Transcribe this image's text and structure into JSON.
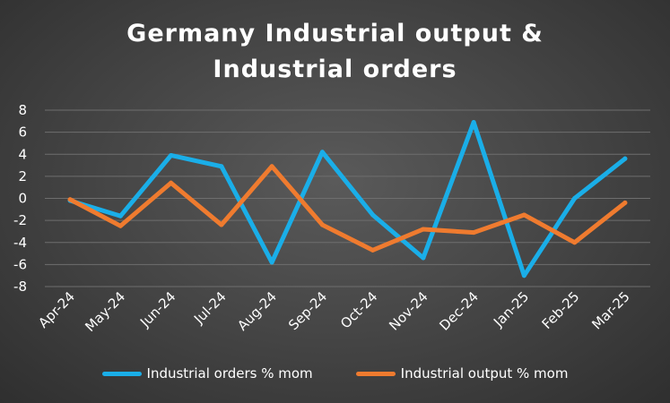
{
  "title_line1": "Germany Industrial output &",
  "title_line2": "Industrial orders",
  "chart_data": {
    "type": "line",
    "title": "Germany Industrial output & Industrial orders",
    "categories": [
      "Apr-24",
      "May-24",
      "Jun-24",
      "Jul-24",
      "Aug-24",
      "Sep-24",
      "Oct-24",
      "Nov-24",
      "Dec-24",
      "Jan-25",
      "Feb-25",
      "Mar-25"
    ],
    "series": [
      {
        "name": "Industrial orders % mom",
        "color": "#1aaee8",
        "values": [
          -0.2,
          -1.6,
          3.9,
          2.9,
          -5.8,
          4.2,
          -1.5,
          -5.4,
          6.9,
          -7.0,
          0.0,
          3.6
        ]
      },
      {
        "name": "Industrial output % mom",
        "color": "#ef7b2f",
        "values": [
          -0.1,
          -2.5,
          1.4,
          -2.4,
          2.9,
          -2.4,
          -4.7,
          -2.8,
          -3.1,
          -1.5,
          -4.0,
          -0.4
        ]
      }
    ],
    "ylim": [
      -8,
      8
    ],
    "yticks": [
      "8",
      "6",
      "4",
      "2",
      "0",
      "-2",
      "-4",
      "-6",
      "-8"
    ],
    "grid": true,
    "legend": "bottom"
  }
}
